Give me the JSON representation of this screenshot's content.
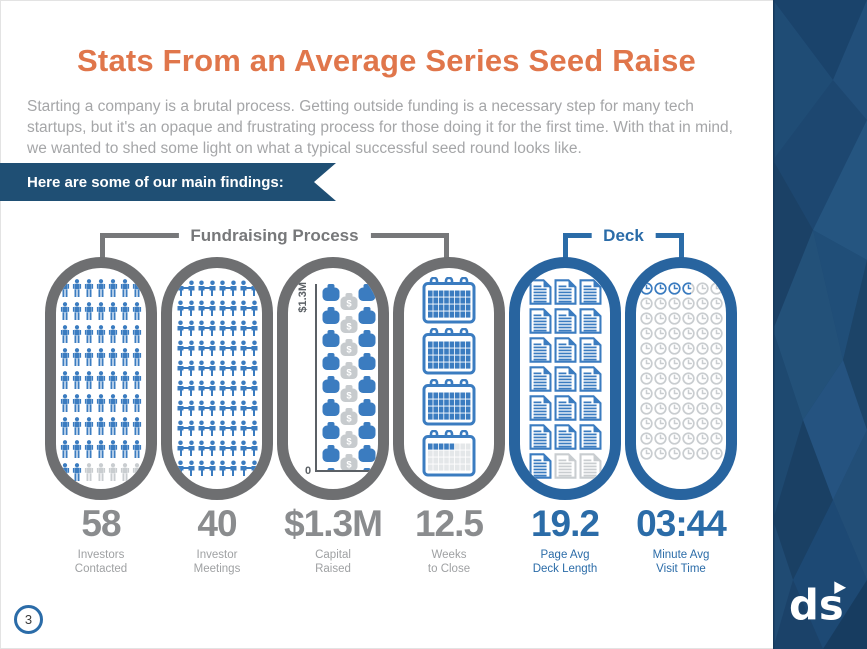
{
  "title": "Stats From an Average Series Seed Raise",
  "intro": "Starting a company is a brutal process. Getting outside funding is a necessary step for many tech startups, but it's an opaque and frustrating process for those doing it for the first time. With that in mind, we wanted to shed some light on what a typical successful seed round looks like.",
  "banner": "Here are some of our main findings:",
  "groups": [
    {
      "label": "Fundraising Process",
      "theme": "gray"
    },
    {
      "label": "Deck",
      "theme": "blue"
    }
  ],
  "capsules": [
    {
      "id": "investors-contacted",
      "icon": "person",
      "border": "gray",
      "theme": "gray",
      "columns": 7,
      "total": 63,
      "filled": 58,
      "value": "58",
      "label_lines": [
        "Investors",
        "Contacted"
      ]
    },
    {
      "id": "investor-meetings",
      "icon": "meeting",
      "border": "gray",
      "theme": "gray",
      "columns": 4,
      "total": 40,
      "filled": 40,
      "value": "40",
      "label_lines": [
        "Investor",
        "Meetings"
      ]
    },
    {
      "id": "capital-raised",
      "icon": "money-stack",
      "border": "gray",
      "theme": "gray",
      "axis_top_label": "$1.3M",
      "axis_bottom_label": "0",
      "bags_per_column": 10,
      "value": "$1.3M",
      "label_lines": [
        "Capital",
        "Raised"
      ]
    },
    {
      "id": "weeks-to-close",
      "icon": "calendar",
      "border": "gray",
      "theme": "gray",
      "total": 4,
      "filled": 3,
      "partial_cells": 5,
      "grid_cols": 8,
      "grid_rows": 4,
      "value": "12.5",
      "label_lines": [
        "Weeks",
        "to Close"
      ]
    },
    {
      "id": "deck-length",
      "icon": "document",
      "border": "blue",
      "theme": "blue",
      "columns": 3,
      "total": 21,
      "filled": 19,
      "value": "19.2",
      "label_lines": [
        "Page Avg",
        "Deck Length"
      ]
    },
    {
      "id": "visit-time",
      "icon": "clock",
      "border": "blue",
      "theme": "blue",
      "columns": 6,
      "total": 72,
      "filled": 3,
      "partial": 0.72,
      "value": "03:44",
      "label_lines": [
        "Minute Avg",
        "Visit Time"
      ]
    }
  ],
  "page_number": "3",
  "logo_text": "ds",
  "colors": {
    "accent_orange": "#e0764b",
    "banner_bg": "#1f4f74",
    "icon_blue": "#3b7cc0",
    "icon_gray": "#c9cdd0",
    "cal_empty": "#e4e7e9",
    "bag_gray": "#c7cbce",
    "brand_blue": "#2b6ca8",
    "sidebar_bg": "#1d4770"
  }
}
